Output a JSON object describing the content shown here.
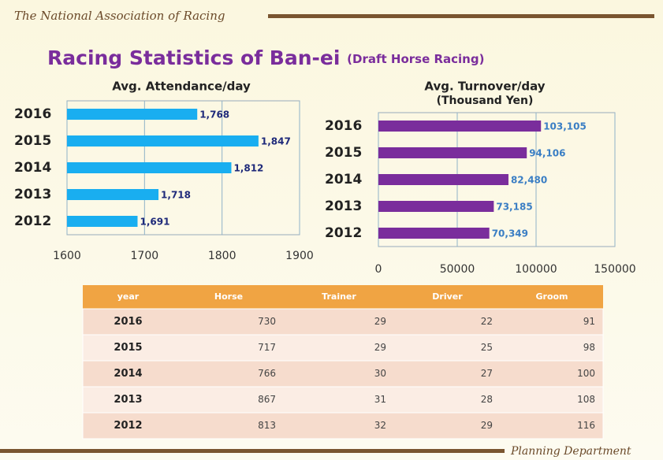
{
  "header": "The National Association of Racing",
  "footer": "Planning Department",
  "title": "Racing Statistics of Ban-ei",
  "subtitle": "(Draft Horse Racing)",
  "chart_data": [
    {
      "type": "bar",
      "orientation": "horizontal",
      "title": "Avg. Attendance/day",
      "categories": [
        "2016",
        "2015",
        "2014",
        "2013",
        "2012"
      ],
      "values": [
        1768,
        1847,
        1812,
        1718,
        1691
      ],
      "value_labels": [
        "1,768",
        "1,847",
        "1,812",
        "1,718",
        "1,691"
      ],
      "xlim": [
        1600,
        1900
      ],
      "xticks": [
        1600,
        1700,
        1800,
        1900
      ],
      "color": "#19aef0",
      "grid": true
    },
    {
      "type": "bar",
      "orientation": "horizontal",
      "title": "Avg. Turnover/day",
      "subtitle": "(Thousand Yen)",
      "categories": [
        "2016",
        "2015",
        "2014",
        "2013",
        "2012"
      ],
      "values": [
        103105,
        94106,
        82480,
        73185,
        70349
      ],
      "value_labels": [
        "103,105",
        "94,106",
        "82,480",
        "73,185",
        "70,349"
      ],
      "xlim": [
        0,
        150000
      ],
      "xticks": [
        0,
        50000,
        100000,
        150000
      ],
      "color": "#7a2d9c",
      "grid": true
    }
  ],
  "table": {
    "columns": [
      "year",
      "Horse",
      "Trainer",
      "Driver",
      "Groom"
    ],
    "rows": [
      [
        "2016",
        730,
        29,
        22,
        91
      ],
      [
        "2015",
        717,
        29,
        25,
        98
      ],
      [
        "2014",
        766,
        30,
        27,
        100
      ],
      [
        "2013",
        867,
        31,
        28,
        108
      ],
      [
        "2012",
        813,
        32,
        29,
        116
      ]
    ]
  }
}
